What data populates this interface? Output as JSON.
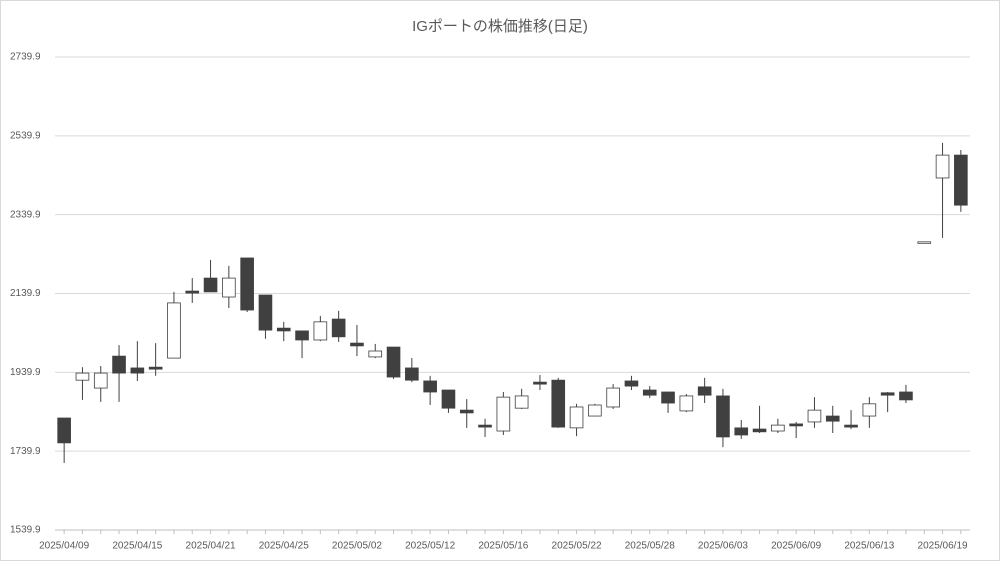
{
  "chart_data": {
    "type": "candlestick",
    "title": "IGポートの株価推移(日足)",
    "categories": [
      "2025/04/09",
      null,
      null,
      null,
      "2025/04/15",
      null,
      null,
      null,
      "2025/04/21",
      null,
      null,
      null,
      "2025/04/25",
      null,
      null,
      null,
      "2025/05/02",
      null,
      null,
      null,
      "2025/05/12",
      null,
      null,
      null,
      "2025/05/16",
      null,
      null,
      null,
      "2025/05/22",
      null,
      null,
      null,
      "2025/05/28",
      null,
      null,
      null,
      "2025/06/03",
      null,
      null,
      null,
      "2025/06/09",
      null,
      null,
      null,
      "2025/06/13",
      null,
      null,
      null,
      "2025/06/19",
      null
    ],
    "open": [
      1824,
      1920,
      1900,
      1981,
      1951,
      1953,
      1976,
      2146,
      2179,
      2131,
      2230,
      2136,
      2052,
      2045,
      2022,
      2075,
      2014,
      1979,
      2004,
      1951,
      1918,
      1895,
      1844,
      1806,
      1791,
      1849,
      1915,
      1920,
      1799,
      1829,
      1852,
      1918,
      1895,
      1890,
      1842,
      1903,
      1880,
      1799,
      1796,
      1791,
      1809,
      1814,
      1829,
      1806,
      1829,
      1888,
      1890,
      2271,
      2433,
      2491
    ],
    "high": [
      1824,
      1953,
      1956,
      2009,
      2019,
      2014,
      2144,
      2179,
      2225,
      2210,
      2230,
      2136,
      2068,
      2045,
      2083,
      2096,
      2060,
      2012,
      2004,
      1976,
      1931,
      1895,
      1872,
      1822,
      1890,
      1898,
      1933,
      1926,
      1860,
      1860,
      1910,
      1931,
      1905,
      1890,
      1885,
      1926,
      1898,
      1819,
      1855,
      1822,
      1814,
      1877,
      1855,
      1844,
      1877,
      1890,
      1908,
      2271,
      2522,
      2504
    ],
    "low": [
      1710,
      1870,
      1865,
      1865,
      1918,
      1931,
      1976,
      2116,
      2144,
      2103,
      2093,
      2025,
      2019,
      1976,
      2019,
      2017,
      1981,
      1976,
      1923,
      1915,
      1857,
      1837,
      1799,
      1776,
      1781,
      1847,
      1895,
      1799,
      1778,
      1829,
      1847,
      1895,
      1875,
      1837,
      1839,
      1862,
      1750,
      1771,
      1786,
      1786,
      1773,
      1799,
      1786,
      1796,
      1799,
      1839,
      1862,
      2271,
      2281,
      2347
    ],
    "close": [
      1761,
      1938,
      1938,
      1938,
      1938,
      1948,
      2116,
      2141,
      2144,
      2179,
      2098,
      2047,
      2045,
      2022,
      2068,
      2030,
      2007,
      1994,
      1928,
      1920,
      1890,
      1849,
      1837,
      1801,
      1877,
      1880,
      1910,
      1801,
      1852,
      1857,
      1900,
      1905,
      1882,
      1862,
      1880,
      1882,
      1776,
      1781,
      1789,
      1806,
      1804,
      1844,
      1816,
      1801,
      1860,
      1882,
      1870,
      2271,
      2491,
      2364
    ],
    "up_color": "#ffffff",
    "down_color": "#404040",
    "ylim": [
      1539.9,
      2739.9
    ],
    "yticks": [
      1539.9,
      1739.9,
      1939.9,
      2139.9,
      2339.9,
      2539.9,
      2739.9
    ],
    "grid": true
  }
}
